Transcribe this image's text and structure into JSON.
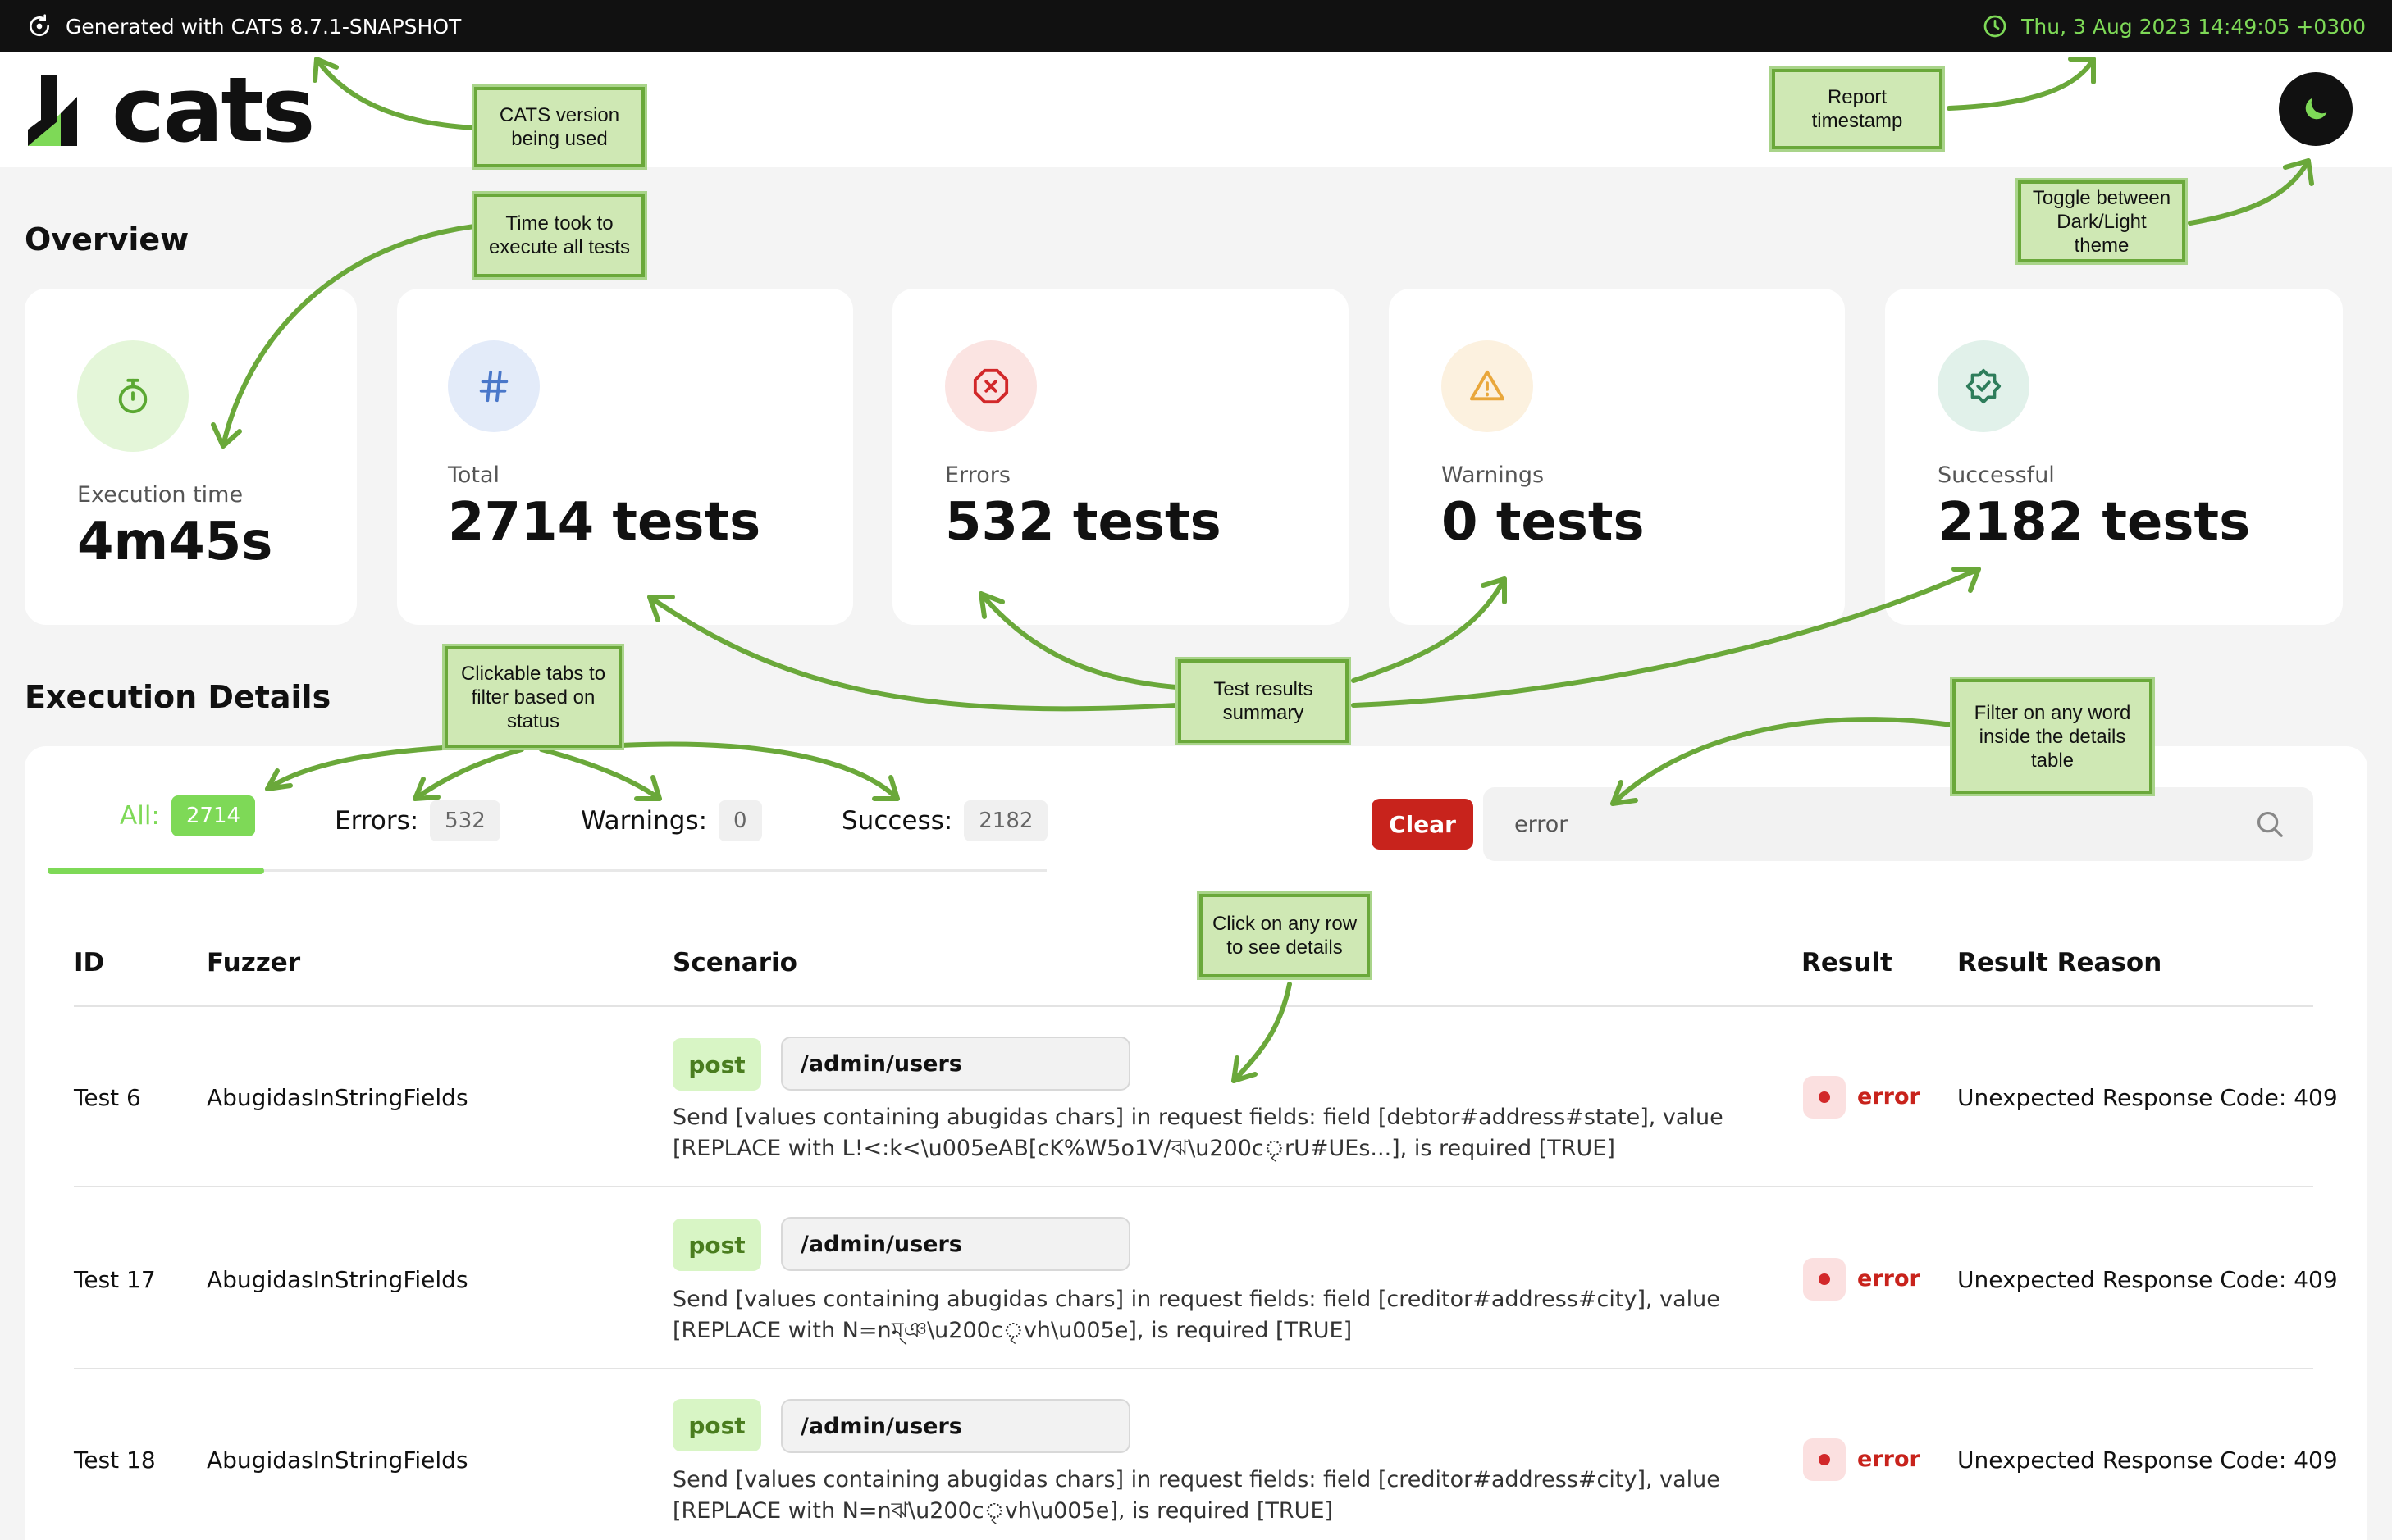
{
  "topbar": {
    "generated_label": "Generated with CATS 8.7.1-SNAPSHOT",
    "timestamp": "Thu, 3 Aug 2023 14:49:05 +0300"
  },
  "header": {
    "logo_text": "cats"
  },
  "overview": {
    "title": "Overview",
    "cards": [
      {
        "label": "Execution time",
        "value": "4m45s",
        "icon": "stopwatch-icon",
        "accent": "#7ed957"
      },
      {
        "label": "Total",
        "value": "2714 tests",
        "icon": "hash-icon",
        "accent": "#4a77c9"
      },
      {
        "label": "Errors",
        "value": "532 tests",
        "icon": "error-x-icon",
        "accent": "#d2282a"
      },
      {
        "label": "Warnings",
        "value": "0 tests",
        "icon": "warning-triangle-icon",
        "accent": "#e9a73b"
      },
      {
        "label": "Successful",
        "value": "2182 tests",
        "icon": "verified-badge-icon",
        "accent": "#2e7d5b"
      }
    ]
  },
  "details": {
    "title": "Execution Details",
    "tabs": [
      {
        "label": "All:",
        "count": "2714"
      },
      {
        "label": "Errors:",
        "count": "532"
      },
      {
        "label": "Warnings:",
        "count": "0"
      },
      {
        "label": "Success:",
        "count": "2182"
      }
    ],
    "clear_label": "Clear",
    "search_value": "error",
    "columns": [
      "ID",
      "Fuzzer",
      "Scenario",
      "Result",
      "Result Reason"
    ],
    "rows": [
      {
        "id": "Test 6",
        "fuzzer": "AbugidasInStringFields",
        "method": "post",
        "path": "/admin/users",
        "scenario": "Send [values containing abugidas chars] in request fields: field [debtor#address#state], value [REPLACE with L!<:k<\\u005eAB[cK%W5o1V/ঝ\\u200cৃrU#UEs...], is required [TRUE]",
        "result": "error",
        "reason": "Unexpected Response Code: 409"
      },
      {
        "id": "Test 17",
        "fuzzer": "AbugidasInStringFields",
        "method": "post",
        "path": "/admin/users",
        "scenario": "Send [values containing abugidas chars] in request fields: field [creditor#address#city], value [REPLACE with N=nম্ঞ\\u200cৃvh\\u005e], is required [TRUE]",
        "result": "error",
        "reason": "Unexpected Response Code: 409"
      },
      {
        "id": "Test 18",
        "fuzzer": "AbugidasInStringFields",
        "method": "post",
        "path": "/admin/users",
        "scenario": "Send [values containing abugidas chars] in request fields: field [creditor#address#city], value [REPLACE with N=nঝ\\u200cৃvh\\u005e], is required [TRUE]",
        "result": "error",
        "reason": "Unexpected Response Code: 409"
      }
    ]
  },
  "annotations": {
    "cats_version": "CATS version being used",
    "report_timestamp": "Report timestamp",
    "time_took": "Time took to execute all tests",
    "toggle_theme": "Toggle between Dark/Light theme",
    "clickable_tabs": "Clickable tabs to filter based on status",
    "test_results": "Test results summary",
    "filter_word": "Filter on any word inside the details table",
    "click_row": "Click on any row to see details"
  },
  "colors": {
    "accent_green": "#7ed957",
    "error_red": "#c8231c",
    "annotation_bg": "#cfe8b4",
    "annotation_border": "#6aa83a"
  }
}
